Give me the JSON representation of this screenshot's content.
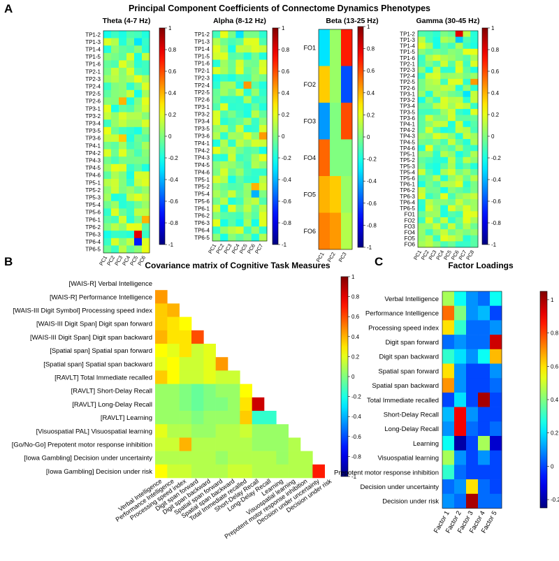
{
  "panel_letters": {
    "a": "A",
    "b": "B",
    "c": "C"
  },
  "chart_data": [
    {
      "type": "heatmap",
      "id": "A",
      "title": "Principal Component Coefficients of Connectome Dynamics Phenotypes",
      "colorbar": {
        "min": -1,
        "max": 1,
        "ticks": [
          "1",
          "0.8",
          "0.6",
          "0.4",
          "0.2",
          "0",
          "-0.2",
          "-0.4",
          "-0.6",
          "-0.8",
          "-1"
        ]
      },
      "subplots": [
        {
          "title": "Theta (4-7 Hz)",
          "rows": [
            "TP1-2",
            "TP1-3",
            "TP1-4",
            "TP1-5",
            "TP1-6",
            "TP2-1",
            "TP2-3",
            "TP2-4",
            "TP2-5",
            "TP2-6",
            "TP3-1",
            "TP3-2",
            "TP3-4",
            "TP3-5",
            "TP3-6",
            "TP4-1",
            "TP4-2",
            "TP4-3",
            "TP4-5",
            "TP4-6",
            "TP5-1",
            "TP5-2",
            "TP5-3",
            "TP5-4",
            "TP5-6",
            "TP6-1",
            "TP6-2",
            "TP6-3",
            "TP6-4",
            "TP6-5"
          ],
          "cols": [
            "PC1",
            "PC2",
            "PC3",
            "PC4",
            "PC5",
            "PC6"
          ],
          "highlights": [
            {
              "row": "TP6-3",
              "col": "PC5",
              "value": 0.8
            },
            {
              "row": "TP6-4",
              "col": "PC5",
              "value": -0.7
            },
            {
              "row": "TP1-3",
              "col": "PC5",
              "value": -0.3
            },
            {
              "row": "TP2-6",
              "col": "PC3",
              "value": 0.4
            },
            {
              "row": "TP3-6",
              "col": "PC3",
              "value": 0.35
            },
            {
              "row": "TP6-1",
              "col": "PC6",
              "value": 0.4
            }
          ]
        },
        {
          "title": "Alpha (8-12 Hz)",
          "rows": [
            "TP1-2",
            "TP1-3",
            "TP1-4",
            "TP1-5",
            "TP1-6",
            "TP2-1",
            "TP2-3",
            "TP2-4",
            "TP2-5",
            "TP2-6",
            "TP3-1",
            "TP3-2",
            "TP3-4",
            "TP3-5",
            "TP3-6",
            "TP4-1",
            "TP4-2",
            "TP4-3",
            "TP4-5",
            "TP4-6",
            "TP5-1",
            "TP5-2",
            "TP5-4",
            "TP5-6",
            "TP6-1",
            "TP6-2",
            "TP6-3",
            "TP6-4",
            "TP6-5"
          ],
          "cols": [
            "PC1",
            "PC2",
            "PC3",
            "PC4",
            "PC5",
            "PC6",
            "PC7"
          ],
          "highlights": [
            {
              "row": "TP2-4",
              "col": "PC5",
              "value": 0.45
            },
            {
              "row": "TP3-6",
              "col": "PC7",
              "value": 0.45
            },
            {
              "row": "TP5-2",
              "col": "PC6",
              "value": 0.4
            },
            {
              "row": "TP5-4",
              "col": "PC6",
              "value": -0.4
            },
            {
              "row": "TP1-2",
              "col": "PC4",
              "value": -0.3
            }
          ]
        },
        {
          "title": "Beta (13-25 Hz)",
          "rows": [
            "FO1",
            "FO2",
            "FO3",
            "FO4",
            "FO5",
            "FO6"
          ],
          "cols": [
            "PC1",
            "PC2",
            "PC3"
          ],
          "values": [
            [
              -0.3,
              0.05,
              0.7
            ],
            [
              0.35,
              0.05,
              -0.6
            ],
            [
              -0.45,
              0.0,
              0.6
            ],
            [
              0.55,
              0.0,
              0.0
            ],
            [
              0.4,
              0.35,
              0.05
            ],
            [
              0.5,
              0.45,
              0.1
            ]
          ]
        },
        {
          "title": "Gamma (30-45 Hz)",
          "rows": [
            "TP1-2",
            "TP1-3",
            "TP1-4",
            "TP1-5",
            "TP1-6",
            "TP2-1",
            "TP2-3",
            "TP2-4",
            "TP2-5",
            "TP2-6",
            "TP3-1",
            "TP3-2",
            "TP3-4",
            "TP3-5",
            "TP3-6",
            "TP4-1",
            "TP4-2",
            "TP4-3",
            "TP4-5",
            "TP4-6",
            "TP5-1",
            "TP5-2",
            "TP5-3",
            "TP5-4",
            "TP5-6",
            "TP6-1",
            "TP6-2",
            "TP6-3",
            "TP6-4",
            "TP6-5",
            "FO1",
            "FO2",
            "FO3",
            "FO4",
            "FO5",
            "FO6"
          ],
          "cols": [
            "PC1",
            "PC2",
            "PC3",
            "PC4",
            "PC5",
            "PC6",
            "PC7",
            "PC8"
          ],
          "highlights": [
            {
              "row": "TP1-2",
              "col": "PC6",
              "value": 0.8
            },
            {
              "row": "TP1-3",
              "col": "PC6",
              "value": -0.35
            },
            {
              "row": "TP2-5",
              "col": "PC8",
              "value": 0.45
            },
            {
              "row": "TP3-1",
              "col": "PC7",
              "value": -0.3
            }
          ]
        }
      ]
    },
    {
      "type": "heatmap",
      "id": "B",
      "title": "Covariance matrix of Cognitive Task Measures",
      "row_labels": [
        "[WAIS-R] Verbal Intelligence",
        "[WAIS-R] Performance Intelligence",
        "[WAIS-III Digit Symbol] Processing speed index",
        "[WAIS-III Digit Span] Digit span forward",
        "[WAIS-III Digit Span] Digit span backward",
        "[Spatial span] Spatial span forward",
        "[Spatial span] Spatial span backward",
        "[RAVLT] Total Immediate recalled",
        "[RAVLT] Short-Delay Recall",
        "[RAVLT] Long-Delay Recall",
        "[RAVLT] Learning",
        "[Visuospatial PAL] Visuospatial learning",
        "[Go/No-Go] Prepotent motor response inhibition",
        "[Iowa Gambling] Decision under uncertainty",
        "[Iowa Gambling] Decision under risk"
      ],
      "col_labels": [
        "Verbal Intelligence",
        "Performance Intelligence",
        "Processing speed index",
        "Digit span forward",
        "Digit span backward",
        "Spatial span forward",
        "Spatial span backward",
        "Total Immediate recalled",
        "Short-Delay Recall",
        "Long-Delay Recall",
        "Learning",
        "Visuospatial learning",
        "Prepotent motor response inhibition",
        "Decision under uncertainty",
        "Decision under risk"
      ],
      "lower_triangle": [
        [
          0.45
        ],
        [
          0.35,
          0.4
        ],
        [
          0.35,
          0.3,
          0.25
        ],
        [
          0.4,
          0.3,
          0.3,
          0.6
        ],
        [
          0.25,
          0.2,
          0.3,
          0.15,
          0.2
        ],
        [
          0.2,
          0.25,
          0.15,
          0.15,
          0.2,
          0.45
        ],
        [
          0.35,
          0.25,
          0.15,
          0.15,
          0.2,
          0.15,
          0.15
        ],
        [
          0.05,
          0.05,
          0.0,
          -0.05,
          0.0,
          0.05,
          0.05,
          0.25
        ],
        [
          0.05,
          0.05,
          0.0,
          -0.05,
          0.0,
          0.0,
          0.05,
          0.3,
          0.85
        ],
        [
          0.05,
          0.05,
          0.05,
          0.0,
          0.05,
          0.05,
          0.05,
          0.35,
          -0.15,
          -0.15
        ],
        [
          0.2,
          0.1,
          0.1,
          0.05,
          0.05,
          0.1,
          0.1,
          0.15,
          0.05,
          0.05,
          0.05
        ],
        [
          0.15,
          0.15,
          0.4,
          0.1,
          0.1,
          0.1,
          0.1,
          0.1,
          0.05,
          0.05,
          0.05,
          0.1
        ],
        [
          0.1,
          0.1,
          0.1,
          0.1,
          0.1,
          0.05,
          0.1,
          0.1,
          0.1,
          0.1,
          0.05,
          0.1,
          0.1
        ],
        [
          0.25,
          0.15,
          0.15,
          0.1,
          0.1,
          0.1,
          0.15,
          0.15,
          0.1,
          0.1,
          0.1,
          0.1,
          0.1,
          0.7
        ]
      ],
      "colorbar": {
        "min": -1,
        "max": 1,
        "ticks": [
          "1",
          "0.8",
          "0.6",
          "0.4",
          "0.2",
          "0",
          "-0.2",
          "-0.4",
          "-0.6",
          "-0.8",
          "-1"
        ]
      }
    },
    {
      "type": "heatmap",
      "id": "C",
      "title": "Factor Loadings",
      "row_labels": [
        "Verbal Intelligence",
        "Performance Intelligence",
        "Processing speed index",
        "Digit span forward",
        "Digit span backward",
        "Spatial span forward",
        "Spatial span backward",
        "Total Immediate recalled",
        "Short-Delay Recall",
        "Long-Delay Recall",
        "Learning",
        "Visuospatial learning",
        "Prepotent motor response inhibition",
        "Decision under uncertainty",
        "Decision under risk"
      ],
      "col_labels": [
        "Factor 1",
        "Factor 2",
        "Factor 3",
        "Factor 4",
        "Factor 5"
      ],
      "values": [
        [
          0.45,
          0.25,
          0.1,
          0.05,
          0.25
        ],
        [
          0.75,
          0.4,
          0.1,
          0.15,
          0.0
        ],
        [
          0.6,
          0.3,
          0.05,
          0.05,
          0.1
        ],
        [
          0.05,
          0.1,
          0.05,
          0.05,
          0.95
        ],
        [
          0.3,
          0.2,
          0.1,
          0.25,
          0.65
        ],
        [
          0.6,
          0.1,
          0.0,
          0.0,
          0.1
        ],
        [
          0.7,
          0.1,
          0.0,
          0.0,
          0.05
        ],
        [
          0.0,
          0.2,
          0.0,
          1.0,
          0.0
        ],
        [
          0.15,
          0.9,
          0.1,
          0.0,
          0.0
        ],
        [
          0.1,
          0.9,
          0.05,
          0.0,
          0.05
        ],
        [
          0.25,
          -0.2,
          0.0,
          0.45,
          -0.15
        ],
        [
          0.45,
          0.1,
          0.0,
          0.1,
          0.0
        ],
        [
          0.3,
          0.05,
          0.0,
          0.0,
          0.0
        ],
        [
          0.05,
          0.1,
          0.6,
          0.05,
          0.0
        ],
        [
          0.1,
          0.05,
          1.0,
          0.05,
          0.05
        ]
      ],
      "colorbar": {
        "min": -0.25,
        "max": 1.05,
        "ticks": [
          "1",
          "0.8",
          "0.6",
          "0.4",
          "0.2",
          "0",
          "-0.2"
        ]
      }
    }
  ]
}
